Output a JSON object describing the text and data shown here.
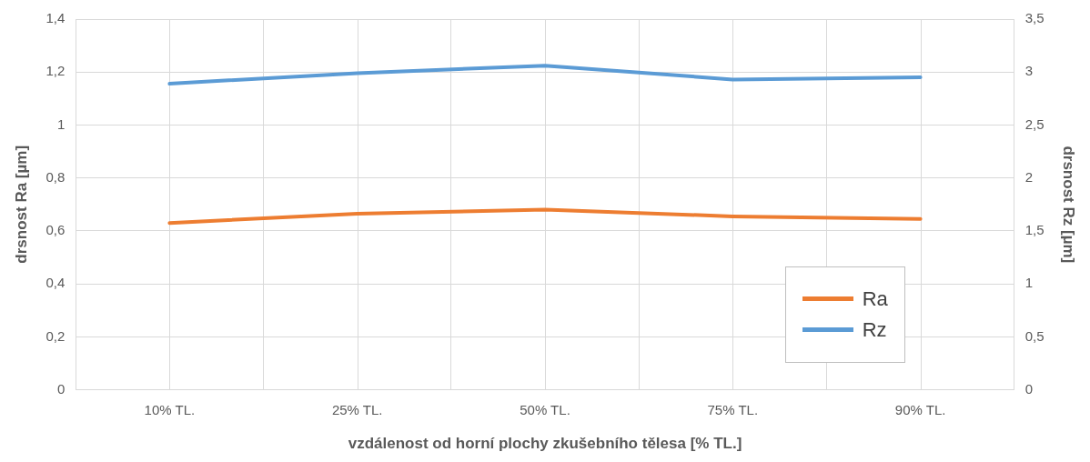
{
  "chart_data": {
    "type": "line",
    "xlabel": "vzdálenost od horní plochy zkušebního tělesa [% TL.]",
    "ylabel": "drsnost Ra [µm]",
    "y2label": "drsnost Rz [µm]",
    "categories": [
      "10% TL.",
      "25% TL.",
      "50% TL.",
      "75% TL.",
      "90% TL."
    ],
    "series": [
      {
        "name": "Ra",
        "color": "#ed7d31",
        "values": [
          0.63,
          0.665,
          0.68,
          0.655,
          0.645
        ]
      },
      {
        "name": "Rz",
        "color": "#5b9bd5",
        "axis": "y2",
        "values": [
          2.89,
          2.99,
          3.06,
          2.93,
          2.95
        ]
      }
    ],
    "ylim": [
      0,
      1.4
    ],
    "yticks": [
      {
        "value": 0,
        "label": "0"
      },
      {
        "value": 0.2,
        "label": "0,2"
      },
      {
        "value": 0.4,
        "label": "0,4"
      },
      {
        "value": 0.6,
        "label": "0,6"
      },
      {
        "value": 0.8,
        "label": "0,8"
      },
      {
        "value": 1,
        "label": "1"
      },
      {
        "value": 1.2,
        "label": "1,2"
      },
      {
        "value": 1.4,
        "label": "1,4"
      }
    ],
    "y2lim": [
      0,
      3.5
    ],
    "y2ticks": [
      {
        "value": 0,
        "label": "0"
      },
      {
        "value": 0.5,
        "label": "0,5"
      },
      {
        "value": 1,
        "label": "1"
      },
      {
        "value": 1.5,
        "label": "1,5"
      },
      {
        "value": 2,
        "label": "2"
      },
      {
        "value": 2.5,
        "label": "2,5"
      },
      {
        "value": 3,
        "label": "3"
      },
      {
        "value": 3.5,
        "label": "3,5"
      }
    ],
    "grid": true,
    "legend": "bottom right",
    "marker": "none",
    "line_style": "solid"
  }
}
